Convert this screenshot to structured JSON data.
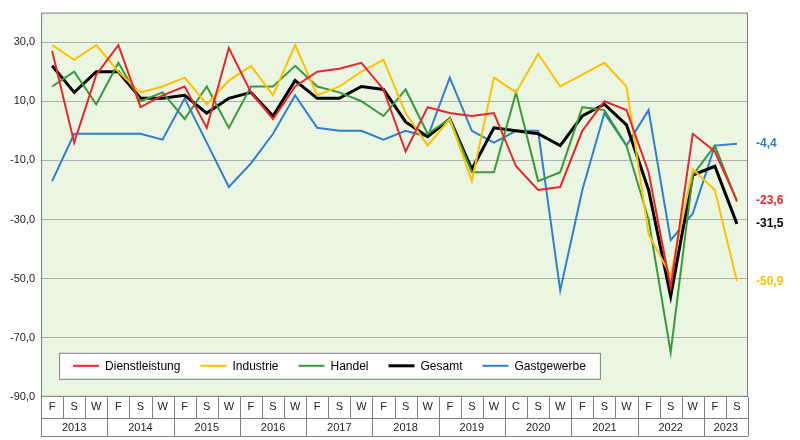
{
  "chart_data": {
    "type": "line",
    "categories": [
      "F",
      "S",
      "W",
      "F",
      "S",
      "W",
      "F",
      "S",
      "W",
      "F",
      "S",
      "W",
      "F",
      "S",
      "W",
      "F",
      "S",
      "W",
      "F",
      "S",
      "W",
      "C",
      "S",
      "W",
      "F",
      "S",
      "W",
      "F",
      "S",
      "W",
      "F",
      "S"
    ],
    "groups": [
      {
        "label": "2013",
        "span": 3
      },
      {
        "label": "2014",
        "span": 3
      },
      {
        "label": "2015",
        "span": 3
      },
      {
        "label": "2016",
        "span": 3
      },
      {
        "label": "2017",
        "span": 3
      },
      {
        "label": "2018",
        "span": 3
      },
      {
        "label": "2019",
        "span": 3
      },
      {
        "label": "2020",
        "span": 3
      },
      {
        "label": "2021",
        "span": 3
      },
      {
        "label": "2022",
        "span": 3
      },
      {
        "label": "2023",
        "span": 2
      }
    ],
    "series": [
      {
        "name": "Dienstleistung",
        "color": "#e8262b",
        "values": [
          27,
          -4,
          19,
          29,
          8,
          12,
          15,
          1,
          28,
          13,
          4,
          15,
          20,
          21,
          23,
          14,
          -7,
          8,
          6,
          5,
          6,
          -12,
          -20,
          -19,
          0,
          10,
          7,
          -14,
          -53,
          -1,
          -7,
          -23.6
        ]
      },
      {
        "name": "Industrie",
        "color": "#ffc000",
        "values": [
          29,
          24,
          29,
          20,
          13,
          15,
          18,
          9,
          17,
          22,
          12,
          29,
          12,
          15,
          20,
          24,
          6,
          -5,
          4,
          -17,
          18,
          13,
          26,
          15,
          19,
          23,
          15,
          -35,
          -49,
          -13,
          -20,
          -50.9
        ]
      },
      {
        "name": "Handel",
        "color": "#3a9a3a",
        "values": [
          15,
          20,
          9,
          23,
          10,
          13,
          4,
          15,
          1,
          15,
          15,
          22,
          15,
          13,
          10,
          5,
          14,
          -1,
          4,
          -14,
          -14,
          13,
          -17,
          -14,
          8,
          7,
          -5,
          -30,
          -75,
          -15,
          -5,
          -24
        ]
      },
      {
        "name": "Gesamt",
        "color": "#000000",
        "values": [
          22,
          13,
          20,
          20,
          11,
          11,
          12,
          6,
          11,
          13,
          5,
          17,
          11,
          11,
          15,
          14,
          3,
          -2,
          4,
          -13,
          1,
          0,
          -1,
          -5,
          5,
          9,
          2,
          -20,
          -56,
          -15,
          -12,
          -31.5
        ]
      },
      {
        "name": "Gastgewerbe",
        "color": "#2f7fce",
        "values": [
          -17,
          -1,
          -1,
          -1,
          -1,
          -3,
          11,
          -4,
          -19,
          -11,
          -1,
          12,
          1,
          0,
          0,
          -3,
          0,
          -2,
          18,
          0,
          -4,
          0,
          0,
          -54,
          -20,
          6,
          -5,
          7,
          -37,
          -28,
          -5,
          -4.4
        ]
      }
    ],
    "ylim": [
      -90,
      40
    ],
    "yticks": [
      {
        "value": -90,
        "label": "-90,0"
      },
      {
        "value": -70,
        "label": "-70,0"
      },
      {
        "value": -50,
        "label": "-50,0"
      },
      {
        "value": -30,
        "label": "-30,0"
      },
      {
        "value": -10,
        "label": "-10,0"
      },
      {
        "value": 10,
        "label": "10,0"
      },
      {
        "value": 30,
        "label": "30,0"
      }
    ],
    "grid": true,
    "legend": "bottom",
    "annotations": [
      {
        "text": "-4,4",
        "series": "Gastgewerbe"
      },
      {
        "text": "-23,6",
        "series": "Dienstleistung"
      },
      {
        "text": "-31,5",
        "series": "Gesamt"
      },
      {
        "text": "-50,9",
        "series": "Industrie"
      }
    ]
  }
}
